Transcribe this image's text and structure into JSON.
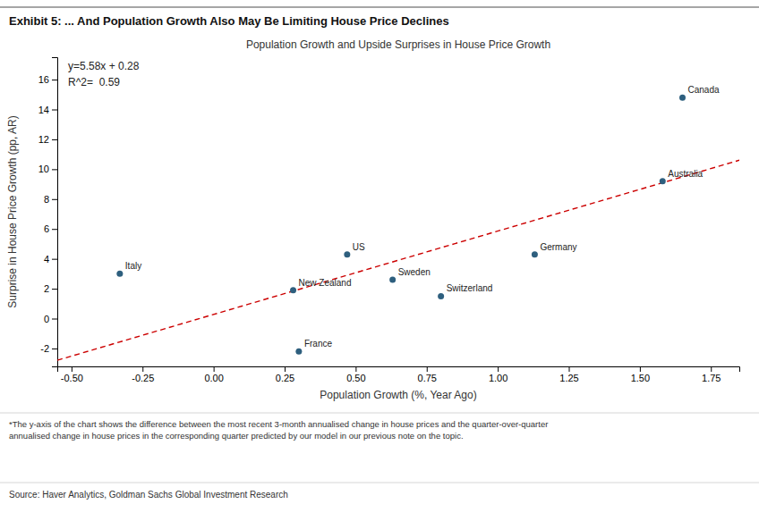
{
  "chart_data": {
    "type": "scatter",
    "title": "Exhibit 5: ... And Population Growth Also May Be Limiting House Price Declines",
    "subtitle": "Population Growth and Upside Surprises in House Price Growth",
    "x_label": "Population Growth (%, Year Ago)",
    "y_label": "Surprise in House Price Growth (pp, AR)",
    "annotations": [
      "y=5.58x + 0.28",
      "R^2=  0.59"
    ],
    "footnote": "*The y-axis of the chart shows the difference between the most recent 3-month annualised change in house prices and the quarter-over-quarter\nannualised change in house prices in the corresponding quarter predicted by our model in our previous note on the topic.",
    "source": "Source: Haver Analytics, Goldman Sachs Global Investment Research",
    "xlim": [
      -0.55,
      1.85
    ],
    "ylim": [
      -3.2,
      17.5
    ],
    "xticks": [
      {
        "value": -0.5,
        "label": "-0.50"
      },
      {
        "value": -0.25,
        "label": "-0.25"
      },
      {
        "value": 0,
        "label": "0.00"
      },
      {
        "value": 0.25,
        "label": "0.25"
      },
      {
        "value": 0.5,
        "label": "0.50"
      },
      {
        "value": 0.75,
        "label": "0.75"
      },
      {
        "value": 1,
        "label": "1.00"
      },
      {
        "value": 1.25,
        "label": "1.25"
      },
      {
        "value": 1.5,
        "label": "1.50"
      },
      {
        "value": 1.75,
        "label": "1.75"
      }
    ],
    "yticks": [
      -2,
      0,
      2,
      4,
      6,
      8,
      10,
      12,
      14,
      16
    ],
    "grid": false,
    "series": [
      {
        "type": "scatter",
        "x": [
          -0.33,
          0.28,
          0.3,
          0.47,
          0.63,
          0.8,
          1.13,
          1.58,
          1.65
        ],
        "values": [
          3.0,
          1.9,
          -2.2,
          4.3,
          2.6,
          1.5,
          4.3,
          9.2,
          14.8
        ],
        "labels": [
          "Italy",
          "New Zealand",
          "France",
          "US",
          "Sweden",
          "Switzerland",
          "Germany",
          "Australia",
          "Canada"
        ],
        "color": "#2e5f7e",
        "marker": "circle"
      },
      {
        "type": "line",
        "x": [
          -0.55,
          1.85
        ],
        "values": [
          -2.789,
          10.603
        ],
        "color": "#cc0000",
        "line_style": "dashed"
      }
    ]
  }
}
